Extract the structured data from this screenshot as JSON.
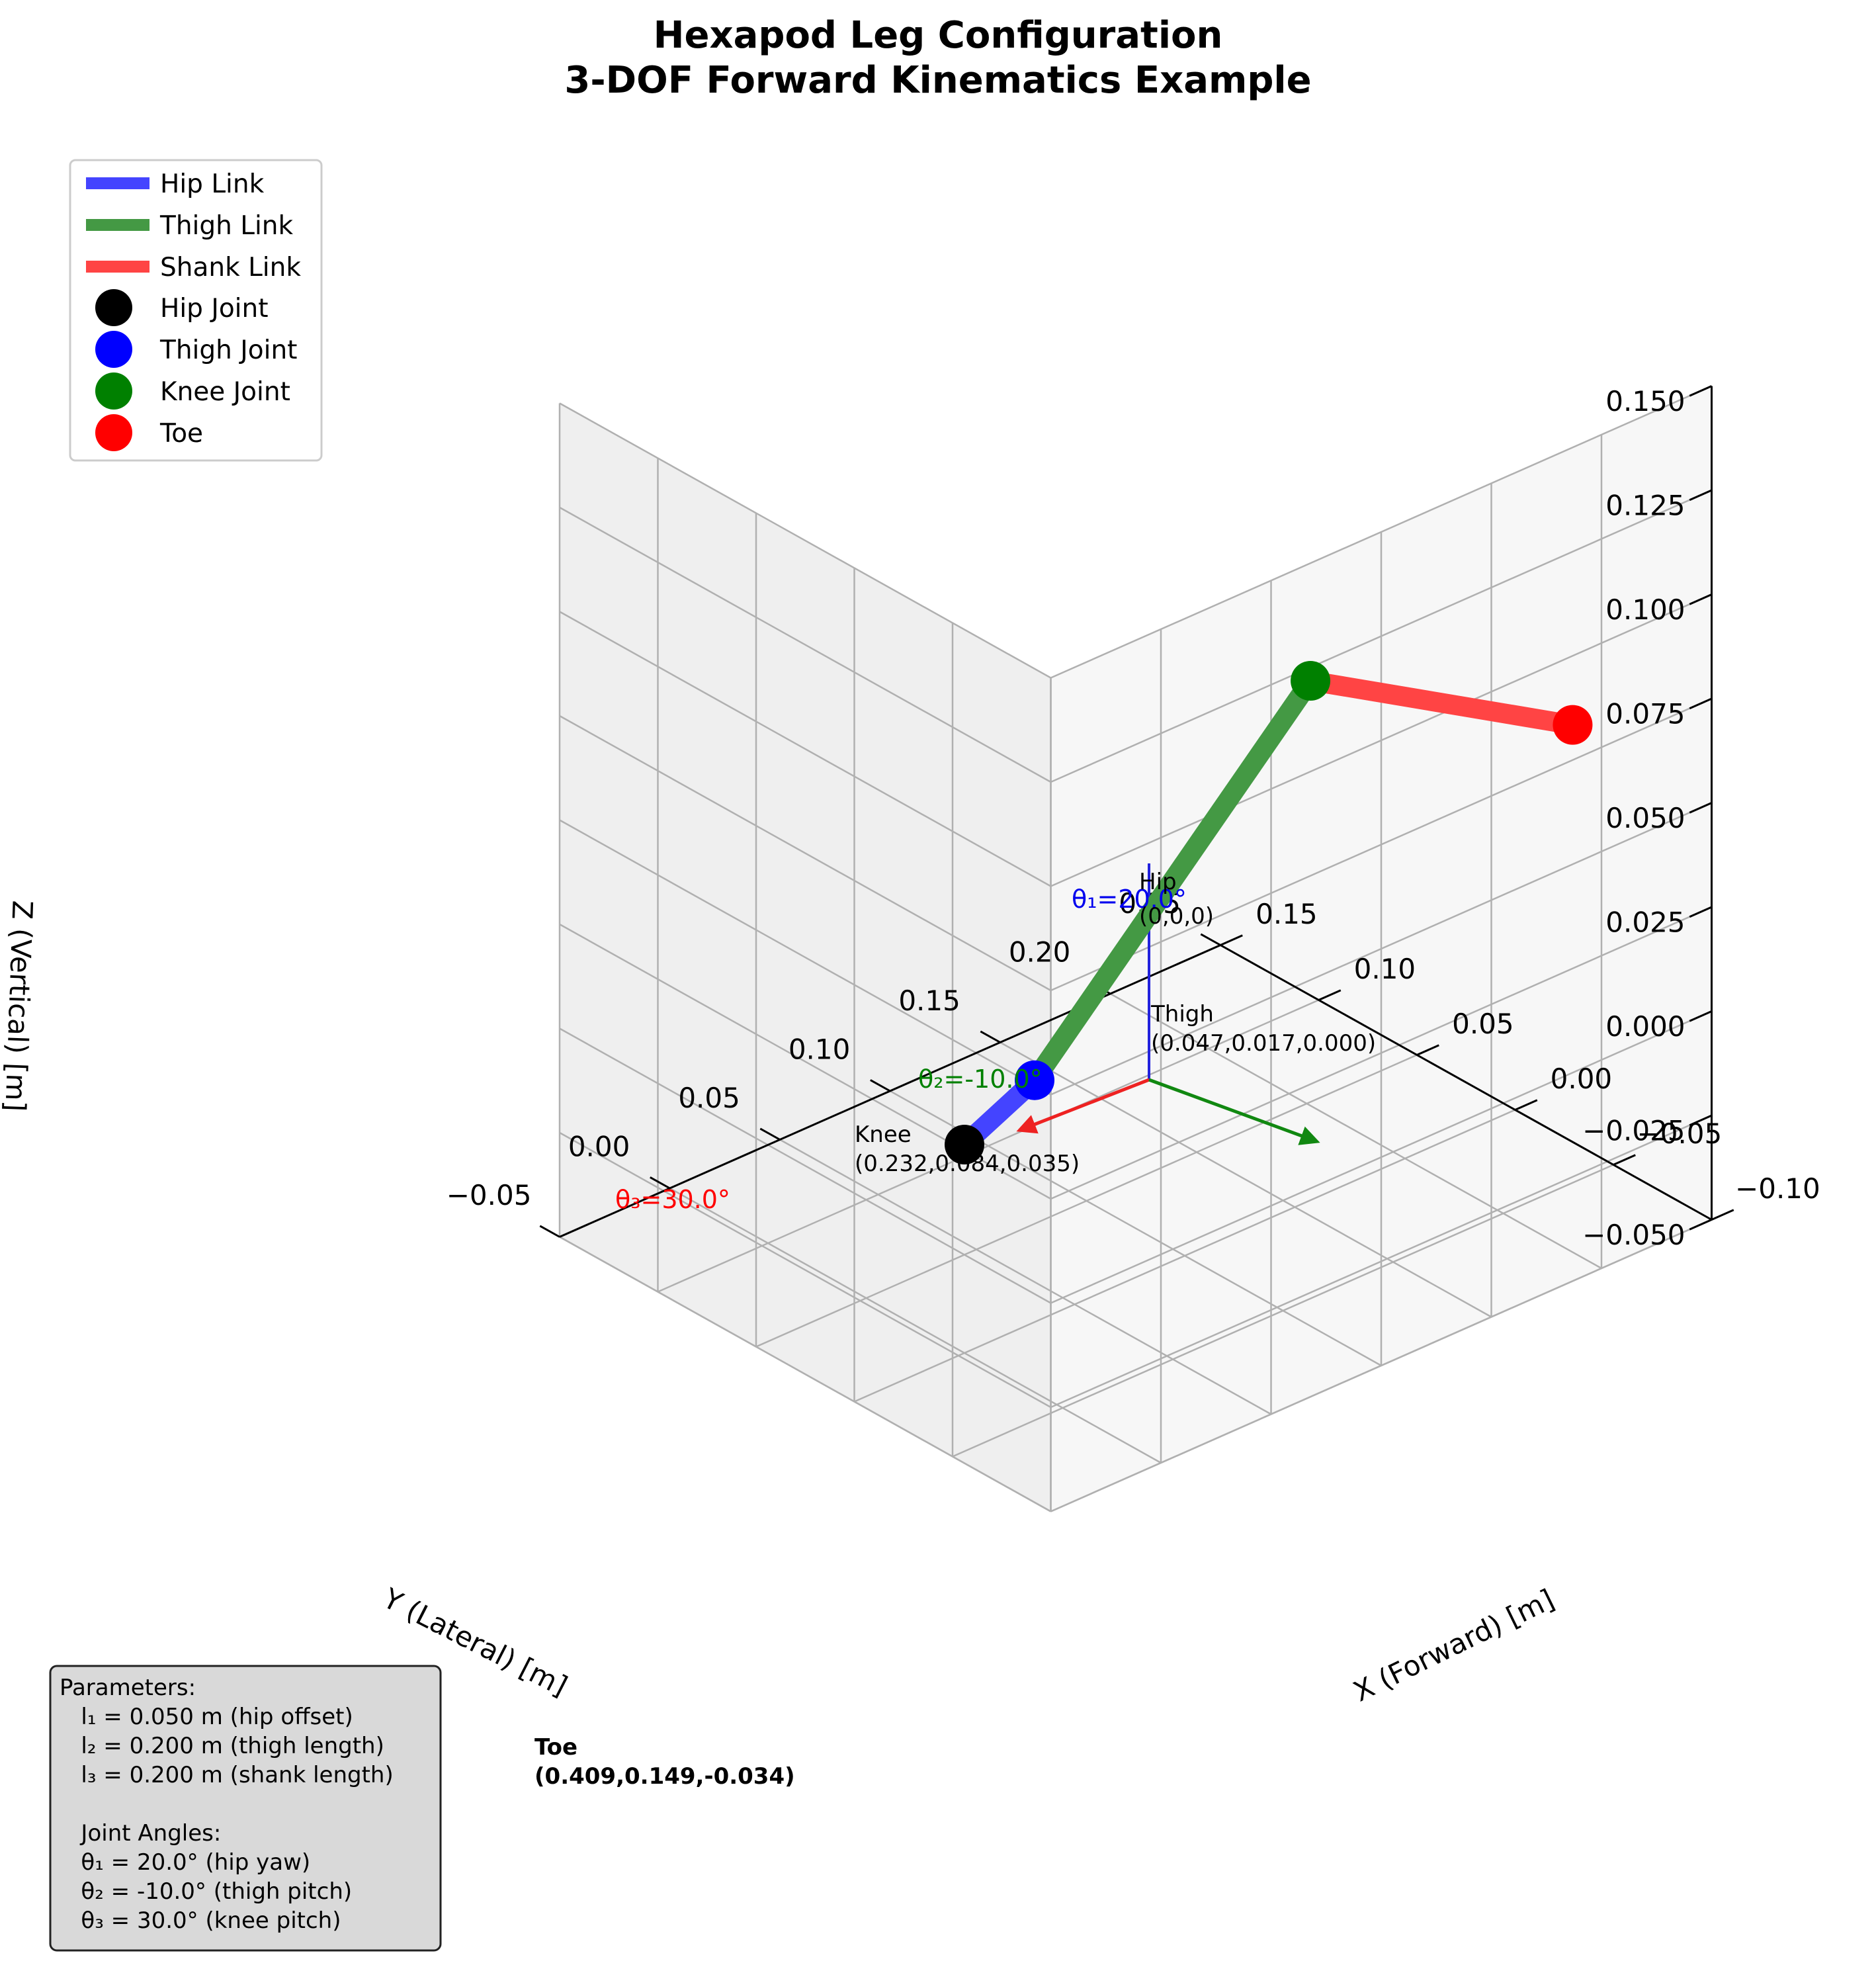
{
  "chart_data": {
    "type": "line3d",
    "title": [
      "Hexapod Leg Configuration",
      "3-DOF Forward Kinematics Example"
    ],
    "xlabel": "X (Forward) [m]",
    "ylabel": "Y (Lateral) [m]",
    "zlabel": "Z (Vertical) [m]",
    "xlim": [
      -0.05,
      0.25
    ],
    "ylim": [
      -0.1,
      0.15
    ],
    "zlim": [
      -0.05,
      0.15
    ],
    "xticks": [
      -0.05,
      0.0,
      0.05,
      0.1,
      0.15,
      0.2,
      0.25
    ],
    "yticks": [
      -0.1,
      -0.05,
      0.0,
      0.05,
      0.1,
      0.15
    ],
    "zticks": [
      -0.05,
      -0.025,
      0.0,
      0.025,
      0.05,
      0.075,
      0.1,
      0.125,
      0.15
    ],
    "xtick_labels": [
      "−0.05",
      "0.00",
      "0.05",
      "0.10",
      "0.15",
      "0.20",
      "0.25"
    ],
    "ytick_labels": [
      "−0.10",
      "−0.05",
      "0.00",
      "0.05",
      "0.10",
      "0.15"
    ],
    "ztick_labels": [
      "−0.050",
      "−0.025",
      "0.000",
      "0.025",
      "0.050",
      "0.075",
      "0.100",
      "0.125",
      "0.150"
    ],
    "grid": true,
    "legend_position": "upper-left",
    "joints": [
      {
        "name": "Hip Joint",
        "x": 0.0,
        "y": 0.0,
        "z": 0.0,
        "color": "#000000"
      },
      {
        "name": "Thigh Joint",
        "x": 0.047,
        "y": 0.017,
        "z": 0.0,
        "color": "#0000ff"
      },
      {
        "name": "Knee Joint",
        "x": 0.232,
        "y": 0.084,
        "z": 0.035,
        "color": "#008000"
      },
      {
        "name": "Toe",
        "x": 0.409,
        "y": 0.149,
        "z": -0.034,
        "color": "#ff0000"
      }
    ],
    "links": [
      {
        "name": "Hip Link",
        "from": 0,
        "to": 1,
        "color": "#4444ff"
      },
      {
        "name": "Thigh Link",
        "from": 1,
        "to": 2,
        "color": "#449944"
      },
      {
        "name": "Shank Link",
        "from": 2,
        "to": 3,
        "color": "#ff4444"
      }
    ],
    "annotations": [
      {
        "id": "hip",
        "lines": [
          "Hip",
          "(0,0,0)"
        ]
      },
      {
        "id": "thigh",
        "lines": [
          "Thigh",
          "(0.047,0.017,0.000)"
        ]
      },
      {
        "id": "knee",
        "lines": [
          "Knee",
          "(0.232,0.084,0.035)"
        ]
      },
      {
        "id": "toe",
        "lines": [
          "Toe",
          "(0.409,0.149,-0.034)"
        ]
      }
    ],
    "angle_labels": [
      {
        "text": "θ₁=20.0°",
        "color": "#0000ee"
      },
      {
        "text": "θ₂=-10.0°",
        "color": "#008000"
      },
      {
        "text": "θ₃=30.0°",
        "color": "#ff0000"
      }
    ],
    "parameters_box": [
      "Parameters:",
      "   l₁ = 0.050 m (hip offset)",
      "   l₂ = 0.200 m (thigh length)",
      "   l₃ = 0.200 m (shank length)",
      "",
      "   Joint Angles:",
      "   θ₁ = 20.0° (hip yaw)",
      "   θ₂ = -10.0° (thigh pitch)",
      "   θ₃ = 30.0° (knee pitch)"
    ]
  }
}
